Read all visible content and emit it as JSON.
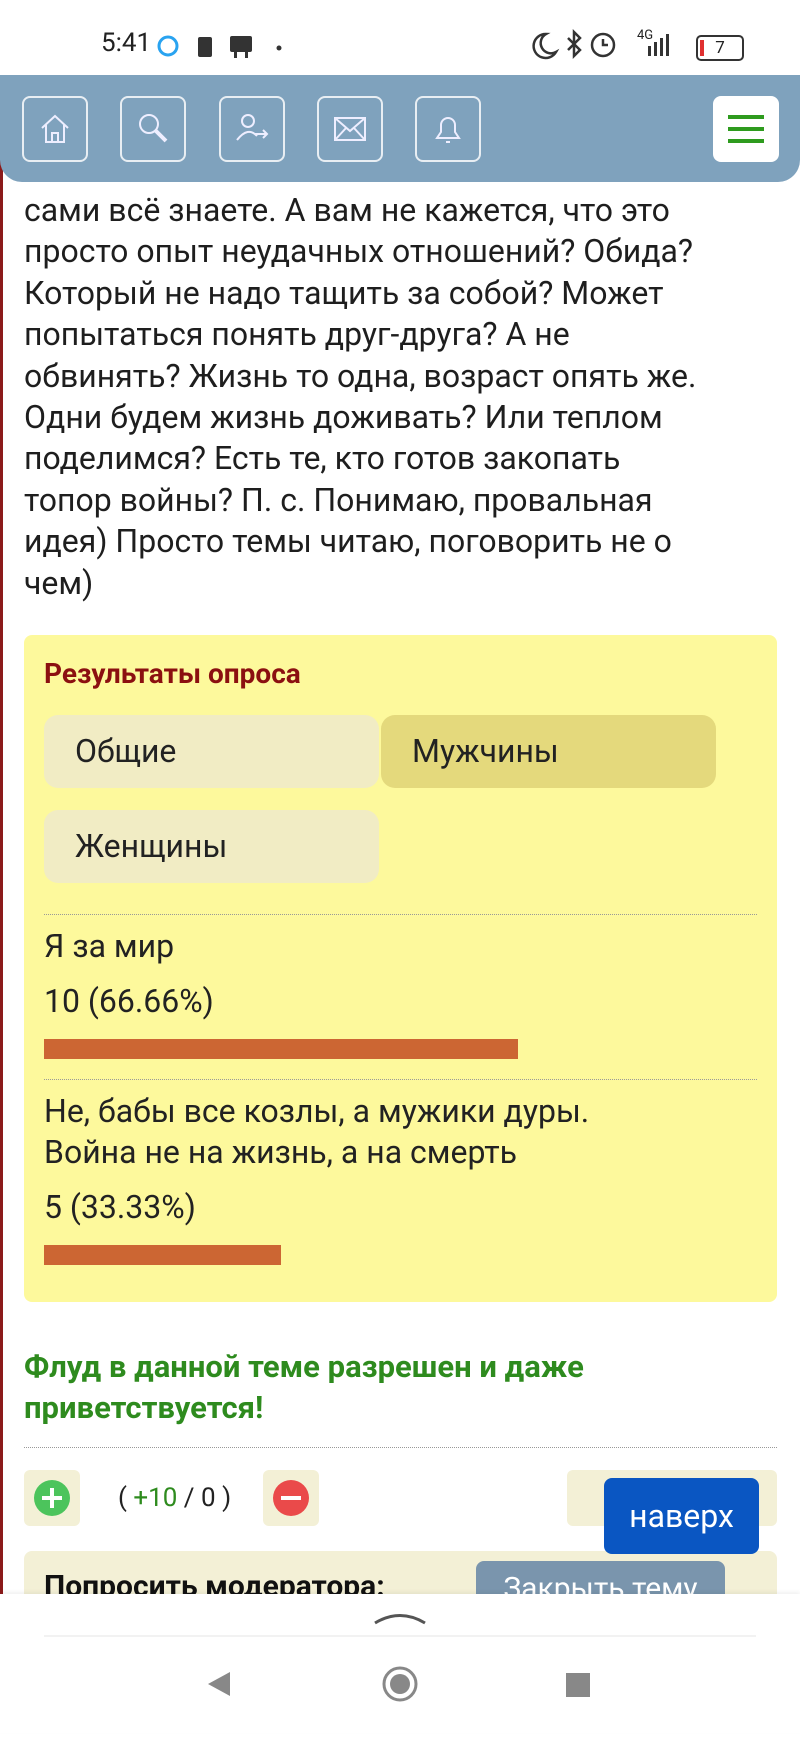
{
  "status_bar": {
    "time": "5:41",
    "network": "4G",
    "battery": "7"
  },
  "post": {
    "lines": [
      "сами всё знаете. А вам не кажется, что это",
      "просто опыт неудачных отношений? Обида?",
      "Который не надо тащить за собой? Может",
      "попытаться понять друг-друга? А не",
      "обвинять? Жизнь то одна, возраст опять же.",
      "Одни будем жизнь доживать? Или теплом",
      "поделимся? Есть те, кто готов закопать",
      "топор войны? П. с. Понимаю, провальная",
      "идея) Просто темы читаю, поговорить не о",
      "чем)"
    ]
  },
  "poll": {
    "title": "Результаты опроса",
    "tabs": [
      "Общие",
      "Мужчины",
      "Женщины"
    ],
    "active_tab": 1,
    "options": [
      {
        "lines": [
          "Я за мир"
        ],
        "votes": 10,
        "percent": 66.66,
        "label": "10 (66.66%)"
      },
      {
        "lines": [
          "Не, бабы все козлы, а мужики дуры.",
          "Война не на жизнь, а на смерть"
        ],
        "votes": 5,
        "percent": 33.33,
        "label": "5 (33.33%)"
      }
    ]
  },
  "notice": {
    "lines": [
      "Флуд в данной теме разрешен и даже",
      "приветствуется!"
    ]
  },
  "rating": {
    "open": "(",
    "plus": "+10",
    "sep": "/",
    "minus": "0",
    "close": ")"
  },
  "scroll_top": "наверх",
  "moderator": {
    "label": "Попросить модератора:",
    "button": "Закрыть тему"
  }
}
